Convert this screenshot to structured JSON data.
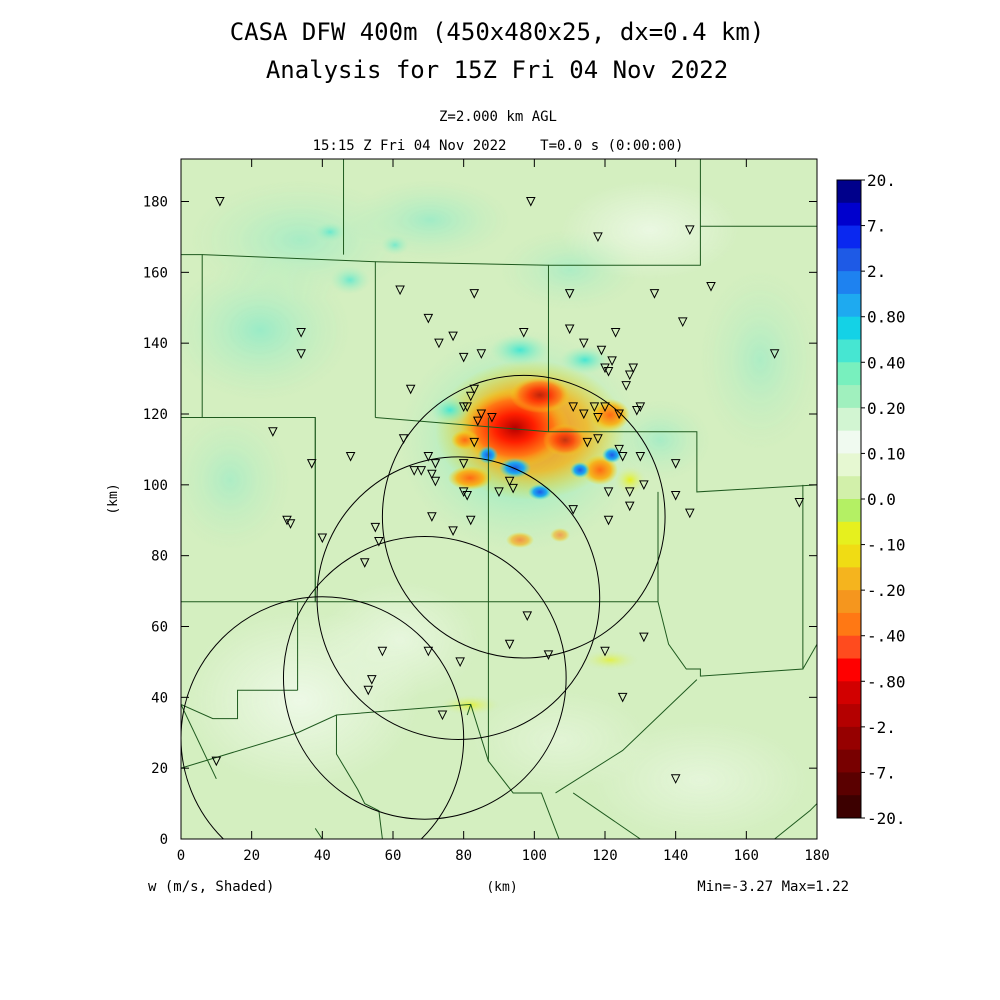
{
  "title": {
    "line1": "CASA DFW 400m (450x480x25, dx=0.4 km)",
    "line2": "Analysis for 15Z Fri 04 Nov 2022"
  },
  "subtitle": {
    "level": "Z=2.000 km AGL",
    "time": "15:15 Z Fri 04 Nov 2022    T=0.0 s (0:00:00)"
  },
  "axes": {
    "x_unit": "(km)",
    "y_unit": "(km)",
    "x_ticks": [
      "0",
      "20",
      "40",
      "60",
      "80",
      "100",
      "120",
      "140",
      "160",
      "180"
    ],
    "y_ticks": [
      "0",
      "20",
      "40",
      "60",
      "80",
      "100",
      "120",
      "140",
      "160",
      "180"
    ],
    "x_range": [
      0,
      180
    ],
    "y_range": [
      0,
      192
    ]
  },
  "footer": {
    "field": "w (m/s, Shaded)",
    "unit": "(km)",
    "minmax": "Min=-3.27 Max=1.22"
  },
  "colorbar": {
    "labels": [
      "20.",
      "7.",
      "2.",
      "0.80",
      "0.40",
      "0.20",
      "0.10",
      "0.0",
      "-.10",
      "-.20",
      "-.40",
      "-.80",
      "-2.",
      "-7.",
      "-20."
    ],
    "colors": [
      "#00008b",
      "#0000cd",
      "#0a28f0",
      "#1e5ae6",
      "#1e82f0",
      "#1eaaf0",
      "#14d2e6",
      "#46e6d2",
      "#78f0be",
      "#a0f0be",
      "#d2f5d2",
      "#f0faf0",
      "#e6f8d2",
      "#d2f0aa",
      "#b4f064",
      "#e6f01e",
      "#f0dc14",
      "#f5b41e",
      "#f5961e",
      "#ff7814",
      "#ff4b1e",
      "#ff0000",
      "#d20000",
      "#b40000",
      "#960000",
      "#780000",
      "#5a0000",
      "#3c0000"
    ]
  },
  "radars": [
    {
      "x": 97.0,
      "y": 91.0
    },
    {
      "x": 78.5,
      "y": 68.0
    },
    {
      "x": 69.0,
      "y": 45.5
    },
    {
      "x": 40.0,
      "y": 28.5
    }
  ],
  "radar_radius_km": 40,
  "stations": [
    [
      11,
      180
    ],
    [
      99,
      180
    ],
    [
      118,
      170
    ],
    [
      144,
      172
    ],
    [
      150,
      156
    ],
    [
      62,
      155
    ],
    [
      83,
      154
    ],
    [
      110,
      154
    ],
    [
      134,
      154
    ],
    [
      142,
      146
    ],
    [
      168,
      137
    ],
    [
      34,
      143
    ],
    [
      34,
      137
    ],
    [
      70,
      147
    ],
    [
      77,
      142
    ],
    [
      73,
      140
    ],
    [
      85,
      137
    ],
    [
      80,
      136
    ],
    [
      97,
      143
    ],
    [
      110,
      144
    ],
    [
      114,
      140
    ],
    [
      119,
      138
    ],
    [
      123,
      143
    ],
    [
      122,
      135
    ],
    [
      120,
      133
    ],
    [
      121,
      132
    ],
    [
      128,
      133
    ],
    [
      127,
      131
    ],
    [
      126,
      128
    ],
    [
      65,
      127
    ],
    [
      83,
      127
    ],
    [
      82,
      125
    ],
    [
      80,
      122
    ],
    [
      81,
      122
    ],
    [
      85,
      120
    ],
    [
      88,
      119
    ],
    [
      84,
      118
    ],
    [
      111,
      122
    ],
    [
      114,
      120
    ],
    [
      117,
      122
    ],
    [
      118,
      119
    ],
    [
      120,
      122
    ],
    [
      124,
      120
    ],
    [
      129,
      121
    ],
    [
      130,
      122
    ],
    [
      26,
      115
    ],
    [
      63,
      113
    ],
    [
      115,
      112
    ],
    [
      118,
      113
    ],
    [
      124,
      110
    ],
    [
      125,
      108
    ],
    [
      130,
      108
    ],
    [
      83,
      112
    ],
    [
      37,
      106
    ],
    [
      48,
      108
    ],
    [
      68,
      104
    ],
    [
      71,
      103
    ],
    [
      66,
      104
    ],
    [
      70,
      108
    ],
    [
      72,
      106
    ],
    [
      72,
      101
    ],
    [
      80,
      106
    ],
    [
      80,
      98
    ],
    [
      81,
      97
    ],
    [
      90,
      98
    ],
    [
      94,
      99
    ],
    [
      93,
      101
    ],
    [
      121,
      98
    ],
    [
      127,
      98
    ],
    [
      131,
      100
    ],
    [
      140,
      97
    ],
    [
      140,
      106
    ],
    [
      144,
      92
    ],
    [
      175,
      95
    ],
    [
      30,
      90
    ],
    [
      31,
      89
    ],
    [
      71,
      91
    ],
    [
      77,
      87
    ],
    [
      82,
      90
    ],
    [
      111,
      93
    ],
    [
      121,
      90
    ],
    [
      127,
      94
    ],
    [
      55,
      88
    ],
    [
      56,
      84
    ],
    [
      40,
      85
    ],
    [
      52,
      78
    ],
    [
      98,
      63
    ],
    [
      131,
      57
    ],
    [
      57,
      53
    ],
    [
      70,
      53
    ],
    [
      79,
      50
    ],
    [
      93,
      55
    ],
    [
      104,
      52
    ],
    [
      120,
      53
    ],
    [
      53,
      42
    ],
    [
      54,
      45
    ],
    [
      125,
      40
    ],
    [
      74,
      35
    ],
    [
      10,
      22
    ],
    [
      140,
      17
    ]
  ],
  "boundaries": [
    [
      [
        0,
        165
      ],
      [
        6,
        165
      ],
      [
        6,
        119
      ],
      [
        0,
        119
      ]
    ],
    [
      [
        0,
        119
      ],
      [
        38,
        119
      ],
      [
        38,
        67
      ],
      [
        0,
        67
      ]
    ],
    [
      [
        38,
        119
      ],
      [
        38,
        67
      ],
      [
        87,
        67
      ],
      [
        87,
        119
      ]
    ],
    [
      [
        46,
        192
      ],
      [
        46,
        165
      ]
    ],
    [
      [
        6,
        165
      ],
      [
        55,
        163
      ],
      [
        55,
        119
      ]
    ],
    [
      [
        55,
        163
      ],
      [
        104,
        162
      ],
      [
        104,
        115
      ]
    ],
    [
      [
        104,
        162
      ],
      [
        147,
        162
      ],
      [
        147,
        173
      ],
      [
        147,
        192
      ]
    ],
    [
      [
        147,
        173
      ],
      [
        182,
        173
      ]
    ],
    [
      [
        104,
        115
      ],
      [
        146,
        115
      ],
      [
        146,
        98
      ],
      [
        180,
        100
      ]
    ],
    [
      [
        55,
        119
      ],
      [
        104,
        115
      ]
    ],
    [
      [
        87,
        67
      ],
      [
        87,
        22
      ],
      [
        94,
        13
      ],
      [
        102,
        13
      ],
      [
        107,
        0
      ]
    ],
    [
      [
        87,
        67
      ],
      [
        135,
        67
      ],
      [
        135,
        98
      ]
    ],
    [
      [
        135,
        67
      ],
      [
        138,
        55
      ],
      [
        143,
        48
      ],
      [
        147,
        48
      ],
      [
        147,
        46
      ],
      [
        176,
        48
      ],
      [
        176,
        100
      ]
    ],
    [
      [
        176,
        48
      ],
      [
        180,
        55
      ],
      [
        182,
        58
      ]
    ],
    [
      [
        0,
        67
      ],
      [
        0,
        40
      ]
    ],
    [
      [
        0,
        38
      ],
      [
        9,
        34
      ],
      [
        16,
        34
      ],
      [
        16,
        42
      ],
      [
        33,
        42
      ]
    ],
    [
      [
        33,
        42
      ],
      [
        33,
        67
      ]
    ],
    [
      [
        0,
        20
      ],
      [
        33,
        30
      ],
      [
        44,
        35
      ],
      [
        82,
        38
      ],
      [
        87,
        22
      ]
    ],
    [
      [
        0,
        38
      ],
      [
        10,
        17
      ]
    ],
    [
      [
        82,
        38
      ],
      [
        81,
        35
      ]
    ],
    [
      [
        44,
        35
      ],
      [
        44,
        24
      ],
      [
        50,
        14
      ],
      [
        52,
        10
      ],
      [
        56,
        8
      ],
      [
        57,
        0
      ]
    ],
    [
      [
        40,
        0
      ],
      [
        38,
        3
      ],
      [
        40,
        0
      ]
    ],
    [
      [
        106,
        13
      ],
      [
        125,
        25
      ],
      [
        146,
        45
      ]
    ],
    [
      [
        168,
        0
      ],
      [
        178,
        8
      ],
      [
        180,
        10
      ]
    ],
    [
      [
        111,
        13
      ],
      [
        130,
        0
      ]
    ]
  ]
}
